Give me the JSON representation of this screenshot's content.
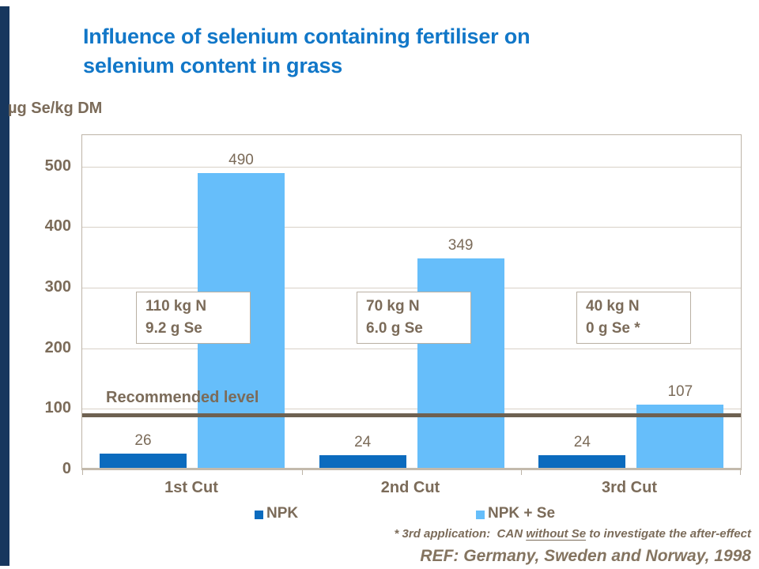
{
  "slide": {
    "title_line1": "Influence of selenium containing fertiliser on",
    "title_line2": "selenium content in grass",
    "unit_label": "µg Se/kg DM",
    "footnote": {
      "prefix": "* 3rd application:  CAN ",
      "underlined": "without Se",
      "suffix": " to investigate the after-effect"
    },
    "reference_text": "REF: Germany, Sweden and Norway, 1998"
  },
  "colors": {
    "title_blue": "#1177C8",
    "brown_text": "#7B6B59",
    "npk_bar": "#0B6BBE",
    "npk_se_bar": "#66BEFA",
    "gridline": "#D8D1C7",
    "plot_border": "#BDB4A7",
    "reference_line": "#6E6151",
    "left_stripe": "#17375E"
  },
  "chart_data": {
    "type": "bar",
    "title": "Influence of selenium containing fertiliser on selenium content in grass",
    "categories": [
      "1st Cut",
      "2nd Cut",
      "3rd Cut"
    ],
    "series": [
      {
        "name": "NPK",
        "color": "#0B6BBE",
        "values": [
          26,
          24,
          24
        ]
      },
      {
        "name": "NPK + Se",
        "color": "#66BEFA",
        "values": [
          490,
          349,
          107
        ]
      }
    ],
    "xlabel": "",
    "ylabel": "µg Se/kg DM",
    "yticks": [
      0,
      100,
      200,
      300,
      400,
      500
    ],
    "ylim": [
      0,
      552
    ],
    "grid": true,
    "legend_position": "bottom",
    "reference_line": {
      "label": "Recommended level",
      "value": 90
    },
    "annotations": [
      {
        "line1": "110 kg N",
        "line2": "9.2 g Se"
      },
      {
        "line1": "70 kg N",
        "line2": "6.0 g Se"
      },
      {
        "line1": "40 kg N",
        "line2": "0 g Se *"
      }
    ]
  }
}
